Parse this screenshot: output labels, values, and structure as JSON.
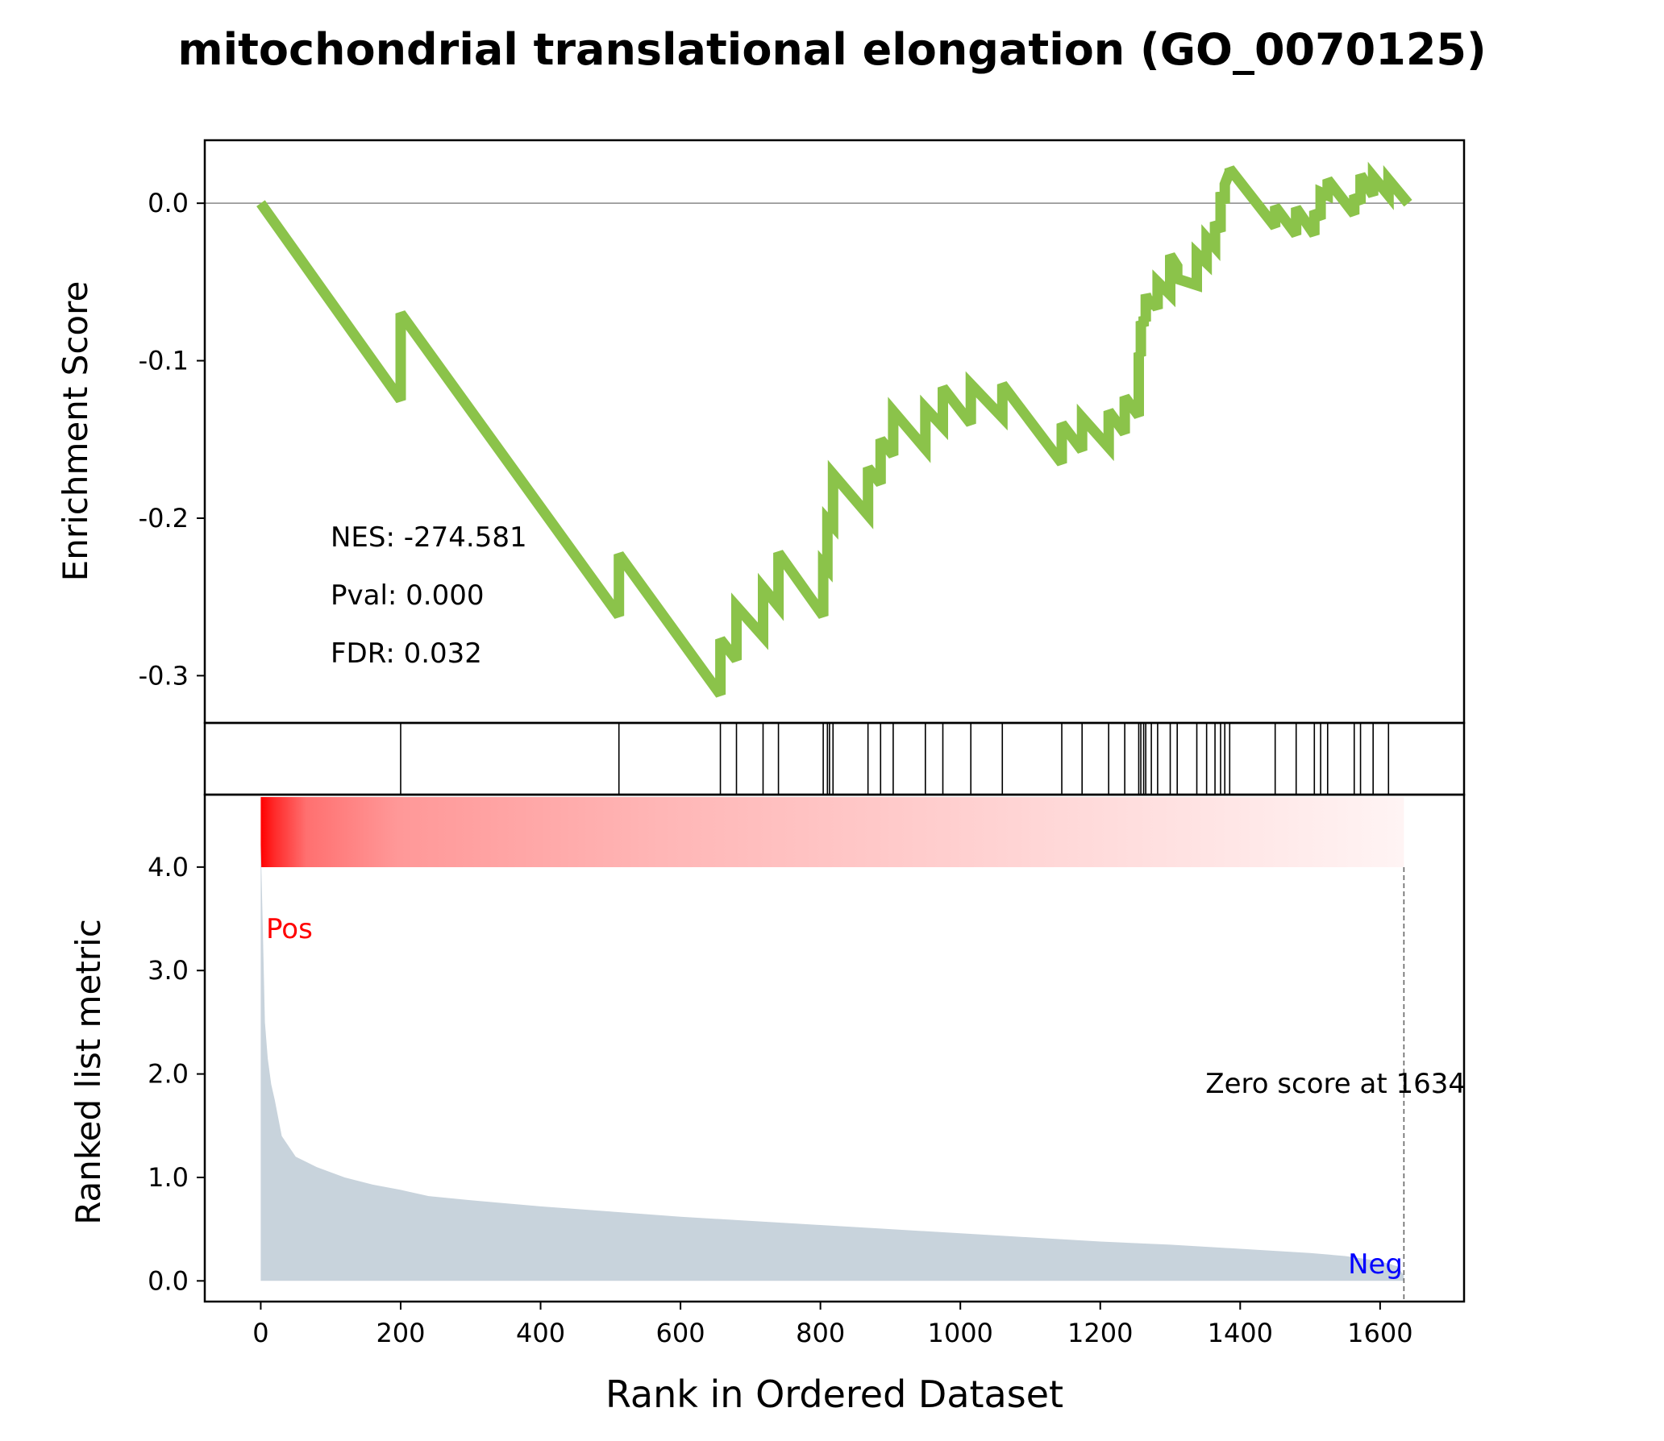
{
  "chart_data": {
    "type": "line",
    "title": "mitochondrial translational elongation (GO_0070125)",
    "es_panel": {
      "ylabel": "Enrichment Score",
      "ylim": [
        -0.33,
        0.04
      ],
      "yticks": [
        0.0,
        -0.1,
        -0.2,
        -0.3
      ],
      "ytick_labels": [
        "0.0",
        "-0.1",
        "-0.2",
        "-0.3"
      ],
      "zero_line": true,
      "line_color": "#8bc34a",
      "stats": [
        "NES: -274.581",
        "Pval: 0.000",
        "FDR: 0.032"
      ],
      "curve": {
        "x": [
          0,
          200,
          200,
          512,
          512,
          657,
          657,
          680,
          680,
          718,
          718,
          740,
          740,
          804,
          804,
          810,
          810,
          818,
          818,
          868,
          868,
          886,
          886,
          904,
          904,
          950,
          950,
          975,
          975,
          1015,
          1015,
          1060,
          1060,
          1145,
          1145,
          1174,
          1174,
          1212,
          1212,
          1235,
          1235,
          1255,
          1255,
          1258,
          1258,
          1262,
          1262,
          1265,
          1265,
          1273,
          1273,
          1282,
          1282,
          1300,
          1300,
          1310,
          1310,
          1338,
          1338,
          1352,
          1352,
          1364,
          1364,
          1372,
          1372,
          1378,
          1378,
          1385,
          1385,
          1450,
          1450,
          1480,
          1480,
          1506,
          1506,
          1515,
          1515,
          1525,
          1525,
          1563,
          1563,
          1572,
          1572,
          1590,
          1590,
          1612,
          1612,
          1640
        ],
        "y": [
          0.0,
          -0.125,
          -0.07,
          -0.262,
          -0.223,
          -0.312,
          -0.277,
          -0.29,
          -0.256,
          -0.275,
          -0.244,
          -0.256,
          -0.222,
          -0.262,
          -0.229,
          -0.232,
          -0.201,
          -0.205,
          -0.172,
          -0.198,
          -0.168,
          -0.178,
          -0.15,
          -0.16,
          -0.132,
          -0.156,
          -0.13,
          -0.142,
          -0.117,
          -0.14,
          -0.115,
          -0.136,
          -0.115,
          -0.165,
          -0.14,
          -0.157,
          -0.136,
          -0.155,
          -0.132,
          -0.146,
          -0.123,
          -0.135,
          -0.095,
          -0.097,
          -0.075,
          -0.078,
          -0.072,
          -0.075,
          -0.058,
          -0.067,
          -0.06,
          -0.067,
          -0.05,
          -0.058,
          -0.033,
          -0.04,
          -0.048,
          -0.052,
          -0.032,
          -0.038,
          -0.022,
          -0.028,
          -0.012,
          -0.018,
          0.007,
          0.0,
          0.012,
          0.02,
          0.022,
          -0.015,
          -0.002,
          -0.02,
          -0.003,
          -0.02,
          -0.005,
          -0.01,
          0.007,
          0.005,
          0.015,
          -0.007,
          0.005,
          0.0,
          0.018,
          0.005,
          0.017,
          0.005,
          0.015,
          0.0
        ]
      }
    },
    "hits_panel": {
      "hit_ranks": [
        200,
        512,
        657,
        680,
        718,
        740,
        804,
        810,
        813,
        818,
        868,
        886,
        904,
        950,
        975,
        1015,
        1060,
        1145,
        1174,
        1212,
        1235,
        1255,
        1258,
        1262,
        1265,
        1273,
        1282,
        1300,
        1310,
        1338,
        1352,
        1364,
        1372,
        1378,
        1385,
        1450,
        1480,
        1506,
        1515,
        1525,
        1563,
        1572,
        1590,
        1612
      ]
    },
    "metric_panel": {
      "ylabel": "Ranked list metric",
      "ylim": [
        -0.2,
        4.7
      ],
      "yticks": [
        0.0,
        1.0,
        2.0,
        3.0,
        4.0
      ],
      "ytick_labels": [
        "0.0",
        "1.0",
        "2.0",
        "3.0",
        "4.0"
      ],
      "fill_color": "#c8d3dc",
      "pos_label": "Pos",
      "neg_label": "Neg",
      "pos_color": "#ff0000",
      "neg_color": "#0000ff",
      "zero_score_label": "Zero score at 1634",
      "zero_score_rank": 1634,
      "curve": {
        "x": [
          0,
          3,
          6,
          10,
          15,
          20,
          30,
          50,
          80,
          120,
          160,
          200,
          240,
          300,
          400,
          500,
          600,
          700,
          800,
          900,
          1000,
          1100,
          1200,
          1300,
          1400,
          1500,
          1550,
          1600,
          1625,
          1634
        ],
        "y": [
          4.25,
          3.4,
          2.5,
          2.15,
          1.9,
          1.75,
          1.4,
          1.2,
          1.1,
          1.0,
          0.93,
          0.88,
          0.82,
          0.78,
          0.72,
          0.67,
          0.62,
          0.58,
          0.54,
          0.5,
          0.46,
          0.42,
          0.38,
          0.35,
          0.31,
          0.27,
          0.24,
          0.19,
          0.14,
          0.05
        ]
      }
    },
    "xlabel": "Rank in Ordered Dataset",
    "xlim": [
      -80,
      1720
    ],
    "xticks": [
      0,
      200,
      400,
      600,
      800,
      1000,
      1200,
      1400,
      1600
    ],
    "xtick_labels": [
      "0",
      "200",
      "400",
      "600",
      "800",
      "1000",
      "1200",
      "1400",
      "1600"
    ]
  }
}
